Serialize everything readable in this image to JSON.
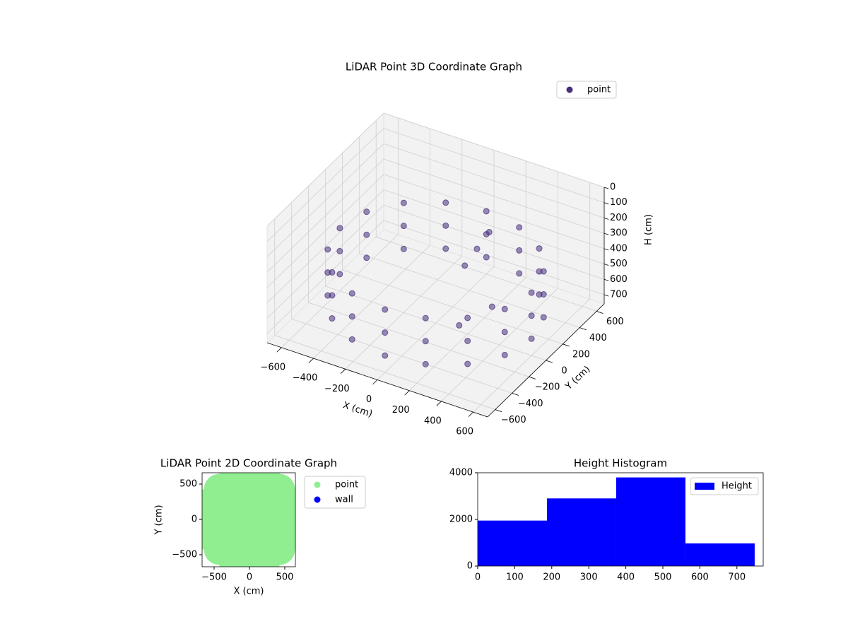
{
  "chart_data": [
    {
      "type": "scatter3d",
      "title": "LiDAR Point 3D Coordinate Graph",
      "xlabel": "X (cm)",
      "ylabel": "Y (cm)",
      "zlabel": "H (cm)",
      "xlim": [
        -690,
        690
      ],
      "ylim": [
        -690,
        690
      ],
      "zlim": [
        0,
        760
      ],
      "z_inverted": true,
      "grid": true,
      "legend": "upper right",
      "xticks": [
        {
          "value": -600,
          "label": "−600"
        },
        {
          "value": -400,
          "label": "−400"
        },
        {
          "value": -200,
          "label": "−200"
        },
        0,
        200,
        400,
        600
      ],
      "yticks": [
        {
          "value": -600,
          "label": "−600"
        },
        {
          "value": -400,
          "label": "−400"
        },
        {
          "value": -200,
          "label": "−200"
        },
        0,
        200,
        400,
        600
      ],
      "zticks": [
        0,
        100,
        200,
        300,
        400,
        500,
        600,
        700
      ],
      "series": [
        {
          "name": "point",
          "color": "#472f7d",
          "x": [
            600,
            554,
            424,
            230,
            0,
            -230,
            -424,
            -554,
            -600,
            -554,
            -424,
            -230,
            0,
            230,
            424,
            554,
            600,
            554,
            424,
            230,
            0,
            -230,
            -424,
            -554,
            -600,
            -554,
            -424,
            -230,
            0,
            230,
            424,
            554,
            600,
            554,
            424,
            230,
            0,
            -230,
            -424,
            -554,
            -600,
            -554,
            -424,
            -230,
            0,
            230,
            424,
            554,
            100,
            150,
            50,
            200,
            300
          ],
          "y": [
            0,
            230,
            424,
            554,
            600,
            554,
            424,
            230,
            0,
            -230,
            -424,
            -554,
            -600,
            -554,
            -424,
            -230,
            0,
            230,
            424,
            554,
            600,
            554,
            424,
            230,
            0,
            -230,
            -424,
            -554,
            -600,
            -554,
            -424,
            -230,
            0,
            230,
            424,
            554,
            600,
            554,
            424,
            230,
            0,
            -230,
            -424,
            -554,
            -600,
            -554,
            -424,
            -230,
            300,
            350,
            250,
            -100,
            100
          ],
          "z": [
            350,
            350,
            350,
            350,
            350,
            350,
            350,
            350,
            350,
            350,
            350,
            350,
            350,
            350,
            350,
            350,
            500,
            500,
            500,
            500,
            500,
            500,
            500,
            500,
            500,
            500,
            500,
            500,
            500,
            500,
            500,
            500,
            650,
            650,
            650,
            650,
            650,
            650,
            650,
            650,
            650,
            650,
            650,
            650,
            650,
            650,
            650,
            650,
            400,
            300,
            500,
            650,
            600
          ]
        }
      ]
    },
    {
      "type": "scatter",
      "title": "LiDAR Point 2D Coordinate Graph",
      "xlabel": "X (cm)",
      "ylabel": "Y (cm)",
      "xlim": [
        -670,
        650
      ],
      "ylim": [
        -670,
        660
      ],
      "legend": "outside right",
      "xticks": [
        {
          "value": -500,
          "label": "−500"
        },
        0,
        500
      ],
      "yticks": [
        {
          "value": -500,
          "label": "−500"
        },
        0,
        500
      ],
      "series": [
        {
          "name": "point",
          "color": "#90ee90",
          "x": [
            600,
            554,
            424,
            230,
            0,
            -230,
            -424,
            -554,
            -600,
            -554,
            -424,
            -230,
            0,
            230,
            424,
            554,
            -300,
            0,
            300,
            -300,
            0,
            300,
            -300,
            0,
            300
          ],
          "y": [
            0,
            230,
            424,
            554,
            600,
            554,
            424,
            230,
            0,
            -230,
            -424,
            -554,
            -600,
            -554,
            -424,
            -230,
            -300,
            -300,
            -300,
            0,
            0,
            0,
            300,
            300,
            300
          ]
        },
        {
          "name": "wall",
          "color": "#0000ff",
          "x": [],
          "y": []
        }
      ]
    },
    {
      "type": "histogram",
      "title": "Height Histogram",
      "legend": "upper right",
      "xlim": [
        0,
        771
      ],
      "ylim": [
        0,
        4000
      ],
      "xticks": [
        0,
        100,
        200,
        300,
        400,
        500,
        600,
        700
      ],
      "yticks": [
        0,
        2000,
        4000
      ],
      "bins": [
        0,
        187,
        374,
        561,
        748
      ],
      "series": [
        {
          "name": "Height",
          "color": "#0000ff",
          "values": [
            1950,
            2900,
            3800,
            970
          ]
        }
      ]
    }
  ]
}
